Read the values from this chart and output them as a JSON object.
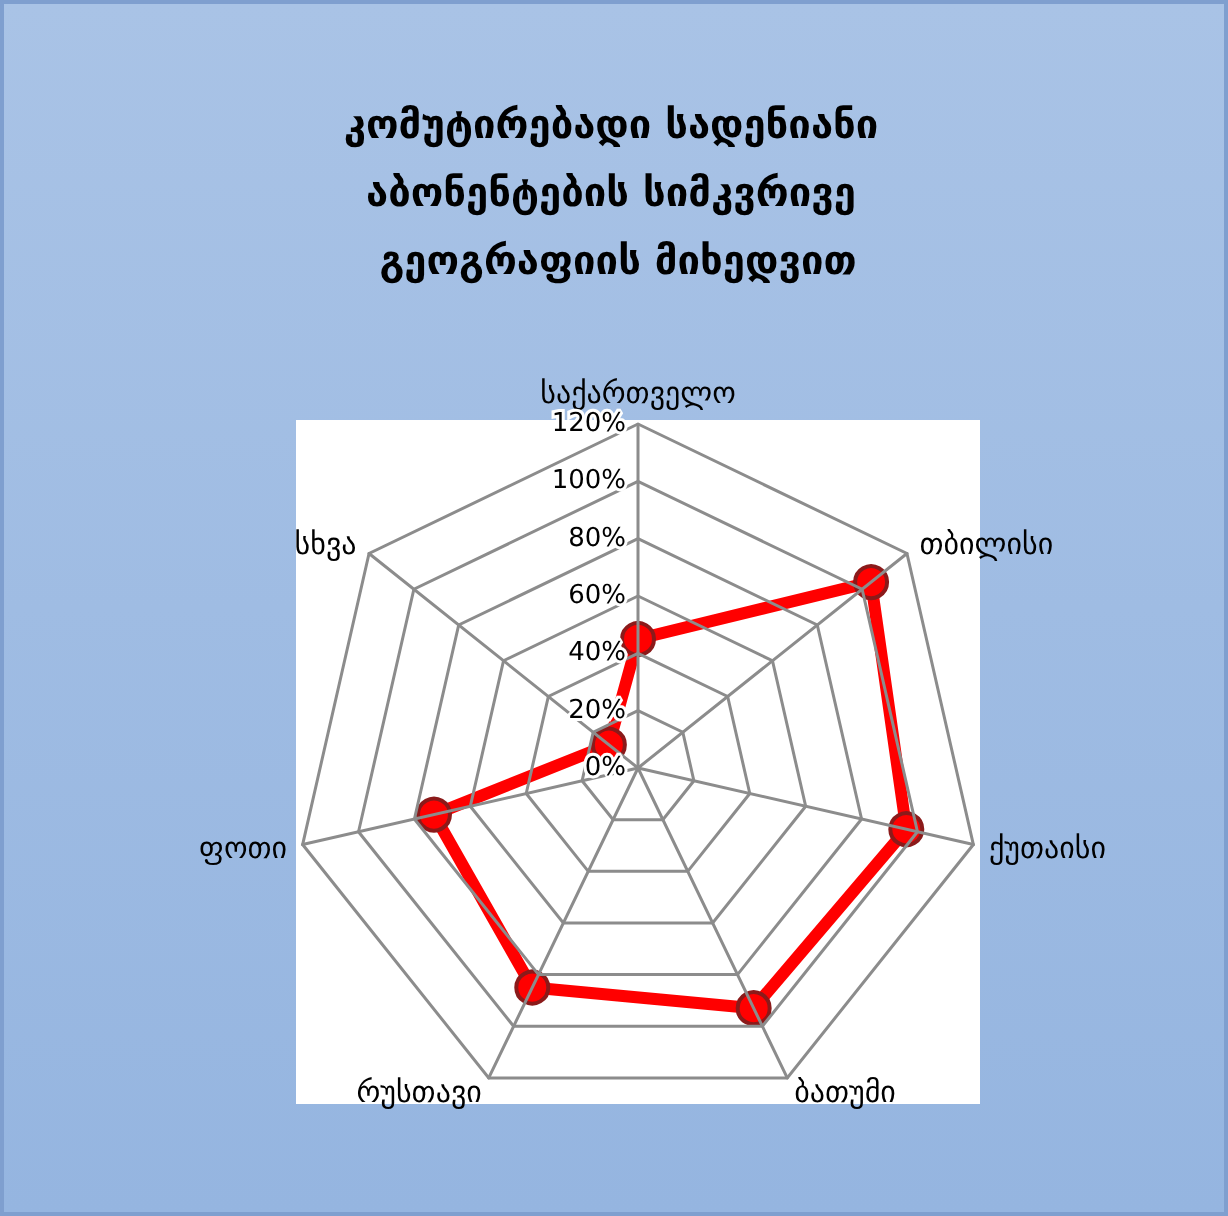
{
  "chart_data": {
    "type": "radar",
    "title": "კომუტირებადი სადენიანი აბონენტების სიმკვრივე გეოგრაფიის მიხედვით",
    "categories": [
      "საქართველო",
      "თბილისი",
      "ქუთაისი",
      "ბათუმი",
      "რუსთავი",
      "ფოთი",
      "სხვა"
    ],
    "series": [
      {
        "color": "#ff0000",
        "values": [
          45,
          104,
          96,
          93,
          85,
          73,
          13
        ]
      }
    ],
    "ylim": [
      0,
      120
    ],
    "yticks": [
      {
        "value": 0,
        "label": "0%"
      },
      {
        "value": 20,
        "label": "20%"
      },
      {
        "value": 40,
        "label": "40%"
      },
      {
        "value": 60,
        "label": "60%"
      },
      {
        "value": 80,
        "label": "80%"
      },
      {
        "value": 100,
        "label": "100%"
      },
      {
        "value": 120,
        "label": "120%"
      }
    ],
    "marker": "circle",
    "line_style": "solid"
  }
}
